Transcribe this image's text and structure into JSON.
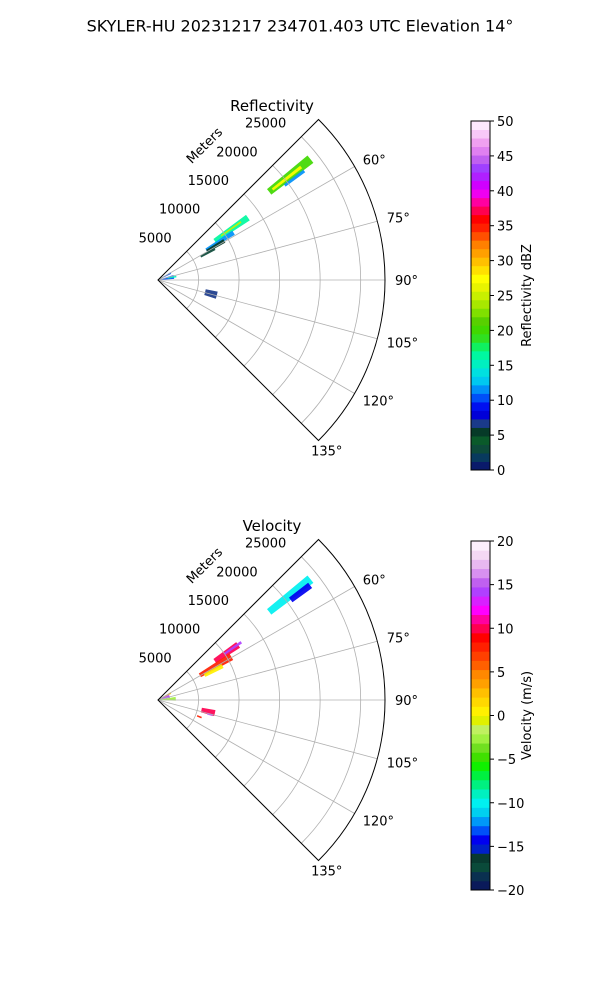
{
  "figure": {
    "title": "SKYLER-HU  20231217  234701.403 UTC Elevation 14°"
  },
  "chart_data": [
    {
      "type": "heatmap",
      "title": "Reflectivity",
      "theta_range_deg": [
        45,
        135
      ],
      "theta_ticks": [
        "60°",
        "75°",
        "90°",
        "105°",
        "120°",
        "135°"
      ],
      "r_ticks": [
        "5000",
        "10000",
        "15000",
        "20000",
        "25000"
      ],
      "r_label": "Meters",
      "r_max": 28000,
      "grid": true,
      "colorbar": {
        "label": "Reflectivity dBZ",
        "min": 0,
        "max": 50,
        "ticks": [
          "0",
          "5",
          "10",
          "15",
          "20",
          "25",
          "30",
          "35",
          "40",
          "45",
          "50"
        ]
      },
      "echoes": [
        {
          "theta": [
            50.2,
            53.0
          ],
          "r": [
            17500,
            24000
          ],
          "value": 20
        },
        {
          "theta": [
            51.2,
            52.2
          ],
          "r": [
            18000,
            22500
          ],
          "value": 28
        },
        {
          "theta": [
            52.8,
            53.8
          ],
          "r": [
            19500,
            22500
          ],
          "value": 12
        },
        {
          "theta": [
            53.5,
            57.0
          ],
          "r": [
            8500,
            13500
          ],
          "value": 16
        },
        {
          "theta": [
            54.5,
            55.5
          ],
          "r": [
            9500,
            12500
          ],
          "value": 25
        },
        {
          "theta": [
            56.5,
            59.5
          ],
          "r": [
            7000,
            11000
          ],
          "value": 11
        },
        {
          "theta": [
            58.0,
            61.0
          ],
          "r": [
            7000,
            9500
          ],
          "value": 6
        },
        {
          "theta": [
            60.0,
            62.5
          ],
          "r": [
            6000,
            8000
          ],
          "value": 3
        },
        {
          "theta": [
            58.0,
            65.0
          ],
          "r": [
            200,
            1800
          ],
          "value": 10
        },
        {
          "theta": [
            72.0,
            86.0
          ],
          "r": [
            300,
            2000
          ],
          "value": 10
        },
        {
          "theta": [
            77.0,
            82.0
          ],
          "r": [
            1200,
            2300
          ],
          "value": 15
        },
        {
          "theta": [
            101.0,
            108.0
          ],
          "r": [
            6000,
            7500
          ],
          "value": 7
        }
      ]
    },
    {
      "type": "heatmap",
      "title": "Velocity",
      "theta_range_deg": [
        45,
        135
      ],
      "theta_ticks": [
        "60°",
        "75°",
        "90°",
        "105°",
        "120°",
        "135°"
      ],
      "r_ticks": [
        "5000",
        "10000",
        "15000",
        "20000",
        "25000"
      ],
      "r_label": "Meters",
      "r_max": 28000,
      "grid": true,
      "colorbar": {
        "label": "Velocity (m/s)",
        "min": -20,
        "max": 20,
        "ticks": [
          "−20",
          "−15",
          "−10",
          "−5",
          "0",
          "5",
          "10",
          "15",
          "20"
        ]
      },
      "echoes": [
        {
          "theta": [
            50.2,
            53.0
          ],
          "r": [
            17500,
            24000
          ],
          "value": -10
        },
        {
          "theta": [
            52.0,
            54.0
          ],
          "r": [
            20500,
            23500
          ],
          "value": -14
        },
        {
          "theta": [
            53.5,
            57.5
          ],
          "r": [
            8500,
            12000
          ],
          "value": 10
        },
        {
          "theta": [
            54.5,
            56.0
          ],
          "r": [
            10000,
            12500
          ],
          "value": 14
        },
        {
          "theta": [
            57.0,
            62.0
          ],
          "r": [
            6000,
            10500
          ],
          "value": 8
        },
        {
          "theta": [
            60.5,
            64.0
          ],
          "r": [
            6500,
            9000
          ],
          "value": 1
        },
        {
          "theta": [
            58.0,
            65.0
          ],
          "r": [
            200,
            1800
          ],
          "value": 3
        },
        {
          "theta": [
            65.0,
            80.0
          ],
          "r": [
            500,
            1500
          ],
          "value": 14
        },
        {
          "theta": [
            80.0,
            92.0
          ],
          "r": [
            300,
            2200
          ],
          "value": -3
        },
        {
          "theta": [
            100.0,
            106.0
          ],
          "r": [
            5500,
            7200
          ],
          "value": 10
        },
        {
          "theta": [
            104.5,
            106.5
          ],
          "r": [
            6300,
            7000
          ],
          "value": 15
        },
        {
          "theta": [
            111.0,
            113.0
          ],
          "r": [
            5200,
            5800
          ],
          "value": 8
        }
      ]
    }
  ]
}
